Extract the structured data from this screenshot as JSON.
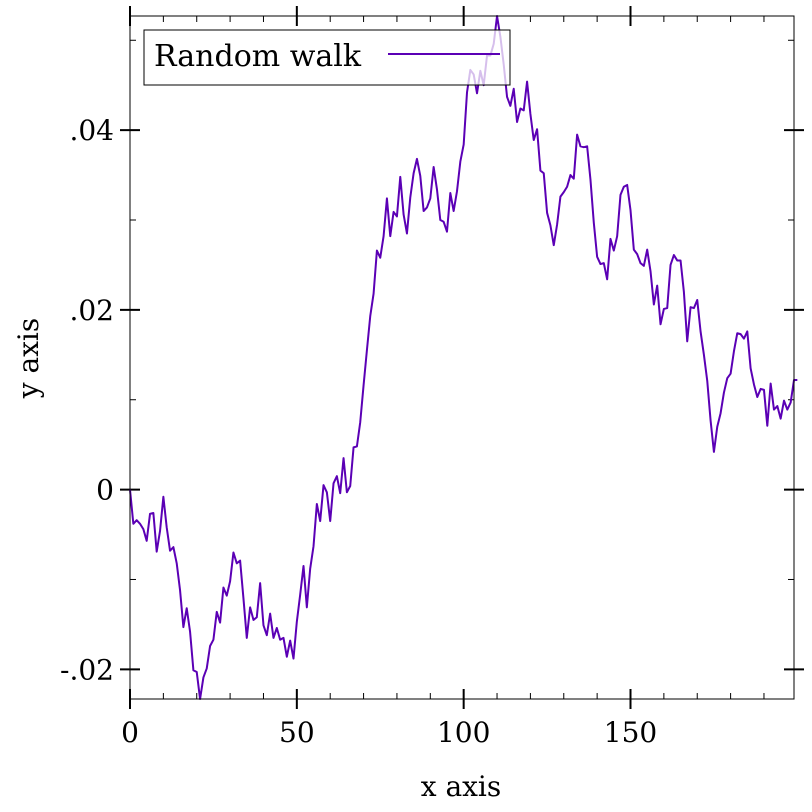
{
  "chart_data": {
    "type": "line",
    "title": "",
    "xlabel": "x axis",
    "ylabel": "y axis",
    "xlim": [
      0,
      199
    ],
    "ylim": [
      -0.0233,
      0.0527
    ],
    "grid": false,
    "legend_position": "top-left",
    "x_ticks": [
      {
        "value": 0,
        "label": "0"
      },
      {
        "value": 50,
        "label": "50"
      },
      {
        "value": 100,
        "label": "100"
      },
      {
        "value": 150,
        "label": "150"
      }
    ],
    "y_ticks": [
      {
        "value": -0.02,
        "label": "-.02"
      },
      {
        "value": 0,
        "label": "0"
      },
      {
        "value": 0.02,
        "label": ".02"
      },
      {
        "value": 0.04,
        "label": ".04"
      }
    ],
    "x_minor_step": 10,
    "y_minor_step": 0.01,
    "series": [
      {
        "name": "Random walk",
        "color": "#5b00b5",
        "x_start": 0,
        "x_step": 1,
        "values": [
          0,
          -0.0038,
          -0.0034,
          -0.0038,
          -0.0044,
          -0.0057,
          -0.0027,
          -0.0026,
          -0.0069,
          -0.0046,
          -0.0008,
          -0.0042,
          -0.0068,
          -0.0064,
          -0.0082,
          -0.0112,
          -0.0153,
          -0.0132,
          -0.0158,
          -0.0201,
          -0.0203,
          -0.0233,
          -0.0209,
          -0.0199,
          -0.0174,
          -0.0167,
          -0.0136,
          -0.0148,
          -0.0109,
          -0.0118,
          -0.0102,
          -0.007,
          -0.0082,
          -0.0079,
          -0.0121,
          -0.0165,
          -0.0131,
          -0.0145,
          -0.0142,
          -0.0104,
          -0.0151,
          -0.0162,
          -0.0138,
          -0.0165,
          -0.0154,
          -0.0167,
          -0.0165,
          -0.0186,
          -0.0168,
          -0.0188,
          -0.0147,
          -0.0117,
          -0.0085,
          -0.0131,
          -0.0088,
          -0.0063,
          -0.0016,
          -0.0035,
          0.0005,
          -0.0003,
          -0.0035,
          0.0007,
          0.0015,
          -0.0004,
          0.0035,
          -0.0003,
          0.0004,
          0.0047,
          0.0048,
          0.0075,
          0.0116,
          0.0155,
          0.0193,
          0.0218,
          0.0266,
          0.0258,
          0.0282,
          0.0324,
          0.0282,
          0.0309,
          0.0304,
          0.0348,
          0.0306,
          0.0285,
          0.0325,
          0.0352,
          0.0368,
          0.0349,
          0.031,
          0.0314,
          0.0324,
          0.0359,
          0.0334,
          0.03,
          0.0298,
          0.0287,
          0.033,
          0.031,
          0.0332,
          0.0365,
          0.0384,
          0.0442,
          0.0467,
          0.0462,
          0.0441,
          0.0466,
          0.045,
          0.0483,
          0.0483,
          0.0496,
          0.0527,
          0.0504,
          0.0473,
          0.0437,
          0.0427,
          0.0446,
          0.0409,
          0.0424,
          0.0422,
          0.0454,
          0.0418,
          0.0389,
          0.0401,
          0.0355,
          0.0352,
          0.0308,
          0.0294,
          0.0272,
          0.0295,
          0.0326,
          0.0331,
          0.0337,
          0.035,
          0.0346,
          0.0395,
          0.0382,
          0.0381,
          0.0382,
          0.0345,
          0.0297,
          0.0259,
          0.0251,
          0.0252,
          0.0234,
          0.0279,
          0.0266,
          0.0282,
          0.0328,
          0.0337,
          0.0339,
          0.0311,
          0.0267,
          0.0262,
          0.0252,
          0.0249,
          0.0267,
          0.0243,
          0.0206,
          0.0227,
          0.0184,
          0.0201,
          0.0202,
          0.025,
          0.0261,
          0.0255,
          0.0255,
          0.022,
          0.0165,
          0.0203,
          0.0202,
          0.0211,
          0.0176,
          0.015,
          0.0121,
          0.0077,
          0.0042,
          0.007,
          0.0085,
          0.0108,
          0.0124,
          0.0129,
          0.0154,
          0.0174,
          0.0173,
          0.0168,
          0.0176,
          0.0135,
          0.0117,
          0.0103,
          0.0112,
          0.0111,
          0.0071,
          0.0118,
          0.0089,
          0.0093,
          0.0079,
          0.0099,
          0.0089,
          0.0097,
          0.0122,
          0.0122
        ]
      }
    ]
  },
  "legend": {
    "label": "Random walk",
    "line_color": "#5b00b5"
  }
}
